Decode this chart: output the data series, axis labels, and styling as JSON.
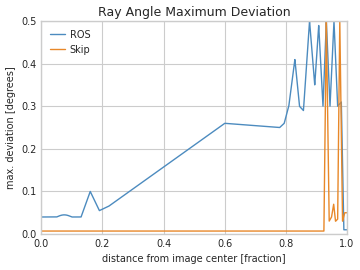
{
  "title": "Ray Angle Maximum Deviation",
  "xlabel": "distance from image center [fraction]",
  "ylabel": "max. deviation [degrees]",
  "xlim": [
    0.0,
    1.0
  ],
  "ylim": [
    0.0,
    0.5
  ],
  "ros_color": "#4C8BBF",
  "skip_color": "#E88829",
  "legend_labels": [
    "ROS",
    "Skip"
  ],
  "yticks": [
    0.0,
    0.1,
    0.2,
    0.3,
    0.4,
    0.5
  ],
  "xticks": [
    0.0,
    0.2,
    0.4,
    0.6,
    0.8,
    1.0
  ],
  "grid_color": "#d5dce6",
  "bg_color": "#eaeaf2"
}
